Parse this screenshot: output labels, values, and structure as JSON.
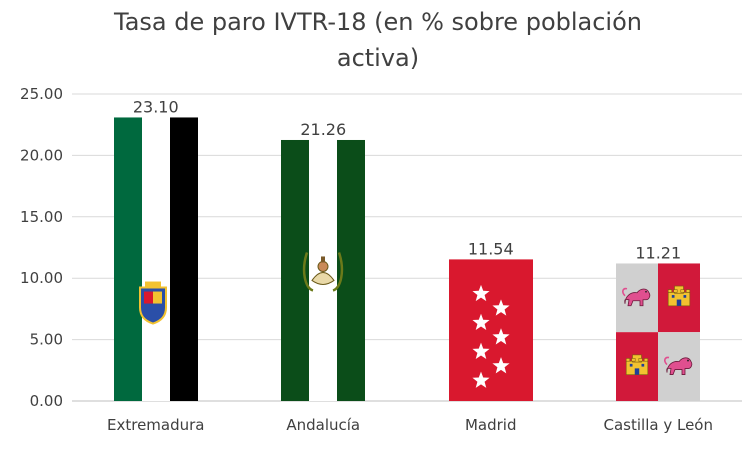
{
  "chart_data": {
    "type": "bar",
    "title_lines": [
      "Tasa de paro IVTR-18 (en % sobre población",
      "activa)"
    ],
    "categories": [
      "Extremadura",
      "Andalucía",
      "Madrid",
      "Castilla y León"
    ],
    "values": [
      23.1,
      21.26,
      11.54,
      11.21
    ],
    "data_labels": [
      "23.10",
      "21.26",
      "11.54",
      "11.21"
    ],
    "y_ticks": [
      "0.00",
      "5.00",
      "10.00",
      "15.00",
      "20.00",
      "25.00"
    ],
    "ylim": [
      0,
      25
    ],
    "grid": true,
    "legend": "none",
    "bar_styles": [
      "flag-extremadura",
      "flag-andalucia",
      "flag-madrid",
      "flag-castilla-leon"
    ]
  },
  "colors": {
    "extremadura_green": "#00693e",
    "extremadura_white": "#ffffff",
    "extremadura_black": "#000000",
    "andalucia_green": "#0b4d19",
    "madrid_red": "#d9182e",
    "castilla_red": "#d1193a",
    "castilla_gray": "#d0d0d0",
    "lion_pink": "#e04f8f",
    "castle_yellow": "#f2c230",
    "text": "#404040",
    "grid": "#d9d9d9"
  }
}
